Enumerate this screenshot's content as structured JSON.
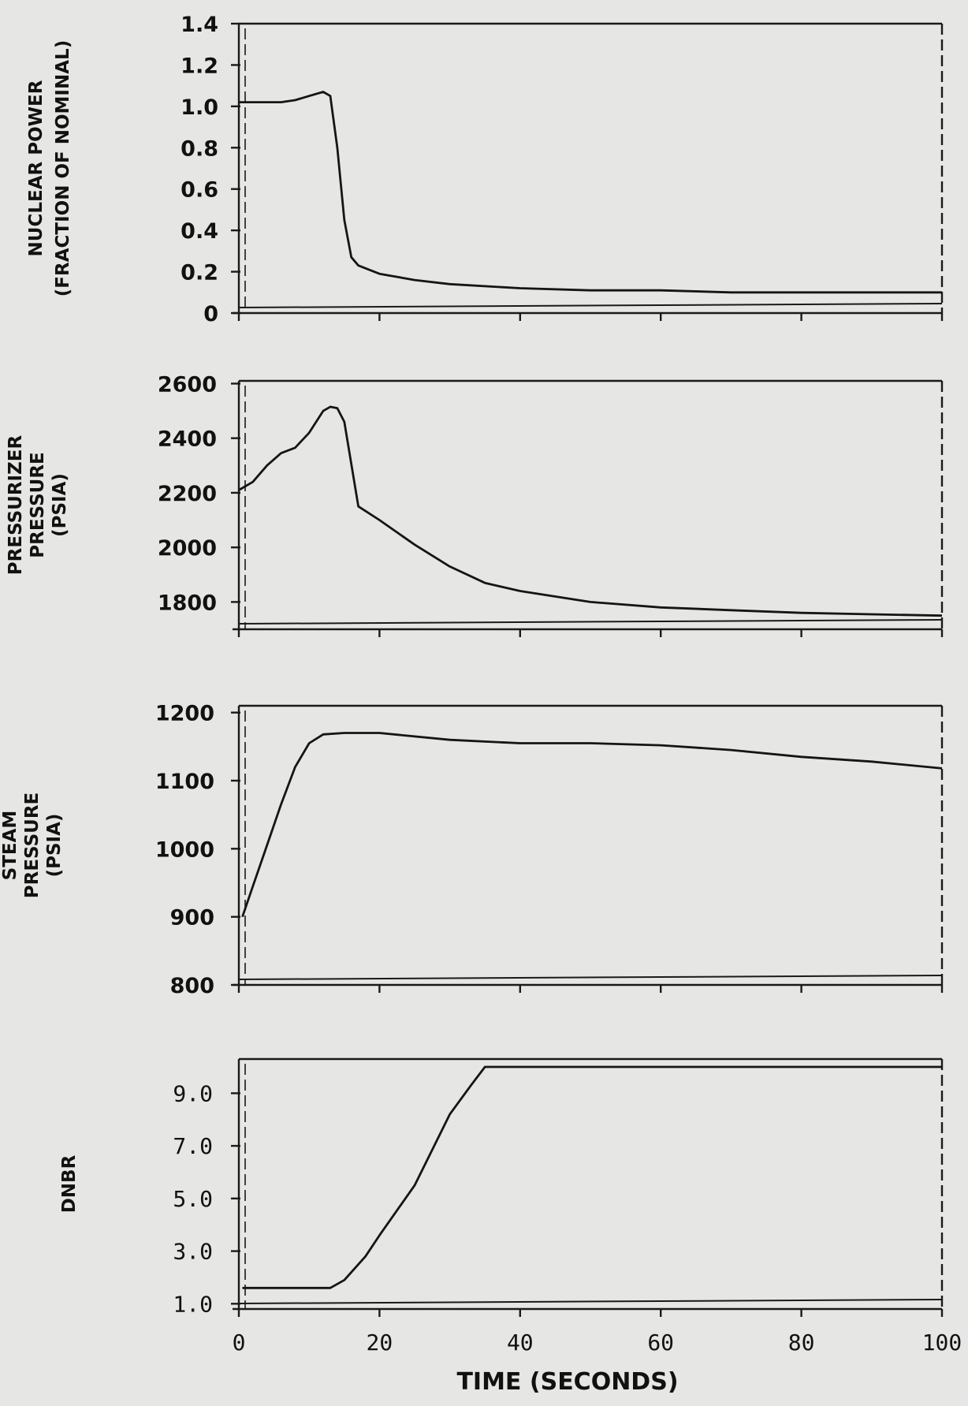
{
  "chart_data": [
    {
      "type": "line",
      "ylabel_lines": [
        "NUCLEAR POWER",
        "(FRACTION OF NOMINAL)"
      ],
      "ylim": [
        0,
        1.4
      ],
      "yticks": [
        0,
        0.2,
        0.4,
        0.6,
        0.8,
        1.0,
        1.2,
        1.4
      ],
      "ytick_labels": [
        "0",
        "0.2",
        "0.4",
        "0.6",
        "0.8",
        "1.0",
        "1.2",
        "1.4"
      ],
      "xlim": [
        0,
        100
      ],
      "grid": false,
      "x": [
        0,
        3,
        6,
        8,
        10,
        12,
        13,
        14,
        15,
        16,
        17,
        20,
        25,
        30,
        40,
        50,
        60,
        70,
        80,
        90,
        100
      ],
      "y": [
        1.02,
        1.02,
        1.02,
        1.03,
        1.05,
        1.07,
        1.05,
        0.8,
        0.45,
        0.27,
        0.23,
        0.19,
        0.16,
        0.14,
        0.12,
        0.11,
        0.11,
        0.1,
        0.1,
        0.1,
        0.1
      ]
    },
    {
      "type": "line",
      "ylabel_lines": [
        "PRESSURIZER",
        "PRESSURE",
        "(PSIA)"
      ],
      "ylim": [
        1700,
        2610
      ],
      "yticks": [
        1800,
        2000,
        2200,
        2400,
        2600
      ],
      "ytick_labels": [
        "1800",
        "2000",
        "2200",
        "2400",
        "2600"
      ],
      "xlim": [
        0,
        100
      ],
      "grid": false,
      "x": [
        0,
        2,
        4,
        6,
        8,
        10,
        12,
        13,
        14,
        15,
        17,
        20,
        25,
        30,
        35,
        40,
        50,
        60,
        70,
        80,
        90,
        100
      ],
      "y": [
        2210,
        2240,
        2300,
        2345,
        2365,
        2420,
        2500,
        2515,
        2510,
        2460,
        2150,
        2100,
        2010,
        1930,
        1870,
        1840,
        1800,
        1780,
        1770,
        1760,
        1755,
        1750
      ]
    },
    {
      "type": "line",
      "ylabel_lines": [
        "STEAM",
        "PRESSURE",
        "(PSIA)"
      ],
      "ylim": [
        800,
        1210
      ],
      "yticks": [
        800,
        900,
        1000,
        1100,
        1200
      ],
      "ytick_labels": [
        "800",
        "900",
        "1000",
        "1100",
        "1200"
      ],
      "xlim": [
        0,
        100
      ],
      "grid": false,
      "x": [
        0.5,
        2,
        4,
        6,
        8,
        10,
        12,
        15,
        20,
        30,
        40,
        50,
        60,
        70,
        80,
        90,
        100
      ],
      "y": [
        900,
        945,
        1005,
        1065,
        1120,
        1155,
        1168,
        1170,
        1170,
        1160,
        1155,
        1155,
        1152,
        1145,
        1135,
        1128,
        1118
      ]
    },
    {
      "type": "line",
      "ylabel_lines": [
        "DNBR"
      ],
      "ylim": [
        0.8,
        10.3
      ],
      "yticks": [
        1.0,
        3.0,
        5.0,
        7.0,
        9.0
      ],
      "ytick_labels": [
        "1.0",
        "3.0",
        "5.0",
        "7.0",
        "9.0"
      ],
      "xlim": [
        0,
        100
      ],
      "grid": false,
      "x": [
        0.5,
        5,
        10,
        13,
        15,
        18,
        20,
        25,
        30,
        33,
        35,
        40,
        50,
        60,
        80,
        100
      ],
      "y": [
        1.6,
        1.6,
        1.6,
        1.6,
        1.9,
        2.8,
        3.6,
        5.5,
        8.2,
        9.3,
        10.0,
        10.0,
        10.0,
        10.0,
        10.0,
        10.0
      ]
    }
  ],
  "x_axis": {
    "title": "TIME (SECONDS)",
    "ticks": [
      0,
      20,
      40,
      60,
      80,
      100
    ],
    "tick_labels": [
      "0",
      "20",
      "40",
      "60",
      "80",
      "100"
    ]
  }
}
